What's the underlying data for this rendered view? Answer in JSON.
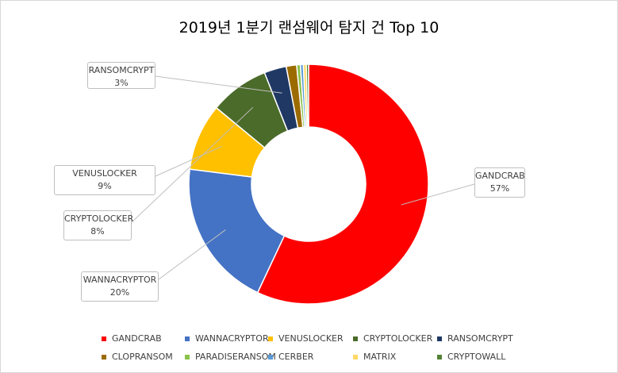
{
  "chart_data": {
    "type": "pie",
    "title": "2019년 1분기 랜섬웨어 탐지 건 Top 10",
    "categories": [
      "GANDCRAB",
      "WANNACRYPTOR",
      "VENUSLOCKER",
      "CRYPTOLOCKER",
      "RANSOMCRYPT",
      "CLOPRANSOM",
      "PARADISERANSOM",
      "CERBER",
      "MATRIX",
      "CRYPTOWALL"
    ],
    "values": [
      57,
      20,
      9,
      8,
      3,
      1.4,
      0.5,
      0.4,
      0.4,
      0.3
    ],
    "colors": [
      "#ff0000",
      "#4472c4",
      "#ffc000",
      "#4b6b2a",
      "#1f3864",
      "#9c6b00",
      "#8bc34a",
      "#5b9bd5",
      "#ffd966",
      "#548235"
    ],
    "labels_shown": [
      {
        "name": "GANDCRAB",
        "value_text": "57%"
      },
      {
        "name": "WANNACRYPTOR",
        "value_text": "20%"
      },
      {
        "name": "VENUSLOCKER",
        "value_text": "9%"
      },
      {
        "name": "CRYPTOLOCKER",
        "value_text": "8%"
      },
      {
        "name": "RANSOMCRYPT",
        "value_text": "3%"
      }
    ],
    "donut": true,
    "legend_position": "bottom"
  }
}
